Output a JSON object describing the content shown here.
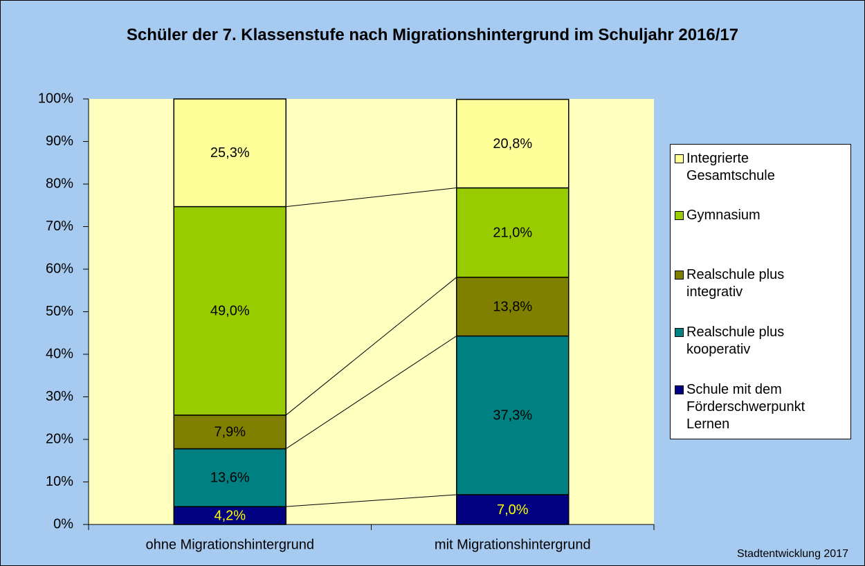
{
  "chart_data": {
    "type": "stacked_bar",
    "title": "Schüler der 7. Klassenstufe nach Migrationshintergrund im Schuljahr 2016/17",
    "source": "Stadtentwicklung 2017",
    "categories": [
      "ohne Migrationshintergrund",
      "mit Migrationshintergrund"
    ],
    "series": [
      {
        "name": "Schule mit dem Förderschwerpunkt Lernen",
        "color": "#000080",
        "label_color": "#FFFF00",
        "values": [
          4.2,
          7.0
        ],
        "value_labels": [
          "4,2%",
          "7,0%"
        ]
      },
      {
        "name": "Realschule plus kooperativ",
        "color": "#008080",
        "label_color": "#000000",
        "values": [
          13.6,
          37.3
        ],
        "value_labels": [
          "13,6%",
          "37,3%"
        ]
      },
      {
        "name": "Realschule plus integrativ",
        "color": "#808000",
        "label_color": "#000000",
        "values": [
          7.9,
          13.8
        ],
        "value_labels": [
          "7,9%",
          "13,8%"
        ]
      },
      {
        "name": "Gymnasium",
        "color": "#99CC00",
        "label_color": "#000000",
        "values": [
          49.0,
          21.0
        ],
        "value_labels": [
          "49,0%",
          "21,0%"
        ]
      },
      {
        "name": "Integrierte Gesamtschule",
        "color": "#FFFF99",
        "label_color": "#000000",
        "values": [
          25.3,
          20.8
        ],
        "value_labels": [
          "25,3%",
          "20,8%"
        ]
      }
    ],
    "ylim": [
      0,
      100
    ],
    "yticks": [
      {
        "value": 0,
        "label": "0%"
      },
      {
        "value": 10,
        "label": "10%"
      },
      {
        "value": 20,
        "label": "20%"
      },
      {
        "value": 30,
        "label": "30%"
      },
      {
        "value": 40,
        "label": "40%"
      },
      {
        "value": 50,
        "label": "50%"
      },
      {
        "value": 60,
        "label": "60%"
      },
      {
        "value": 70,
        "label": "70%"
      },
      {
        "value": 80,
        "label": "80%"
      },
      {
        "value": 90,
        "label": "90%"
      },
      {
        "value": 100,
        "label": "100%"
      }
    ],
    "series_lines": true,
    "legend": "right"
  }
}
